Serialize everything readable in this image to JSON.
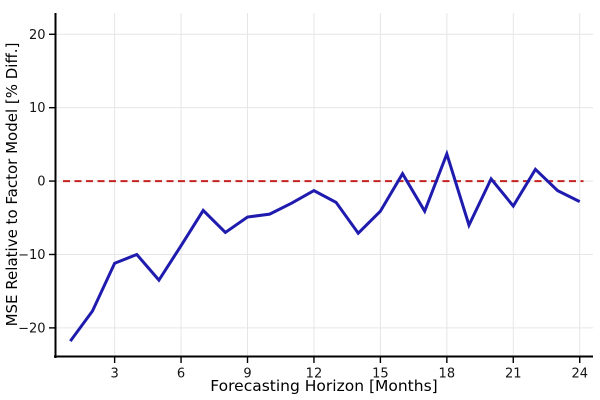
{
  "figure": {
    "background": "#ffffff"
  },
  "chart_data": {
    "type": "line",
    "title": "",
    "xlabel": "Forecasting Horizon [Months]",
    "ylabel": "MSE Relative to Factor Model [% Diff.]",
    "x": [
      1,
      2,
      3,
      4,
      5,
      6,
      7,
      8,
      9,
      10,
      11,
      12,
      13,
      14,
      15,
      16,
      17,
      18,
      19,
      20,
      21,
      22,
      23,
      24
    ],
    "series": [
      {
        "name": "mse-relative-to-factor-model",
        "color": "#1f1bae",
        "line_width": 3,
        "values": [
          -21.8,
          -17.7,
          -11.2,
          -10.0,
          -13.5,
          -8.8,
          -4.0,
          -7.0,
          -4.9,
          -4.5,
          -3.0,
          -1.3,
          -2.9,
          -7.1,
          -4.1,
          1.0,
          -4.1,
          3.7,
          -6.0,
          0.3,
          -3.4,
          1.6,
          -1.3,
          -2.8
        ]
      }
    ],
    "zero_line": {
      "value": 0,
      "color": "#c52222",
      "style": "dashed",
      "line_width": 2
    },
    "xticks": [
      3,
      6,
      9,
      12,
      15,
      18,
      21,
      24
    ],
    "xtick_labels": [
      "3",
      "6",
      "9",
      "12",
      "15",
      "18",
      "21",
      "24"
    ],
    "yticks": [
      -20,
      -10,
      0,
      10,
      20
    ],
    "ytick_labels": [
      "−20",
      "−10",
      "0",
      "10",
      "20"
    ],
    "xlim": [
      0.33,
      24.6
    ],
    "ylim": [
      -23.9,
      22.9
    ],
    "grid": true,
    "grid_color": "#e6e6e6",
    "spine_color": "#000000",
    "legend": "none"
  }
}
